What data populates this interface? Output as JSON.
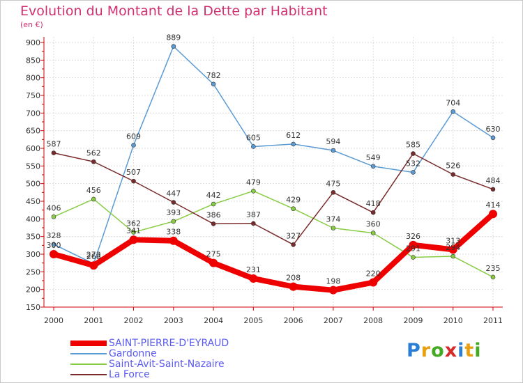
{
  "chart_data": {
    "type": "line",
    "title": "Evolution du Montant de la Dette par Habitant",
    "subtitle": "(en €)",
    "x": [
      "2000",
      "2001",
      "2002",
      "2003",
      "2004",
      "2005",
      "2006",
      "2007",
      "2008",
      "2009",
      "2010",
      "2011"
    ],
    "ylim": [
      150,
      900
    ],
    "yticks": [
      150,
      200,
      250,
      300,
      350,
      400,
      450,
      500,
      550,
      600,
      650,
      700,
      750,
      800,
      850,
      900
    ],
    "grid": true,
    "legend_position": "bottom-left",
    "series": [
      {
        "name": "SAINT-PIERRE-D'EYRAUD",
        "color": "#ee0000",
        "values": [
          300,
          268,
          341,
          338,
          275,
          231,
          208,
          198,
          220,
          326,
          313,
          414
        ]
      },
      {
        "name": "Gardonne",
        "color": "#5a9bd4",
        "values": [
          328,
          273,
          609,
          889,
          782,
          605,
          612,
          594,
          549,
          532,
          704,
          630
        ]
      },
      {
        "name": "Saint-Avit-Saint-Nazaire",
        "color": "#88cc44",
        "values": [
          406,
          456,
          362,
          393,
          442,
          479,
          429,
          374,
          360,
          291,
          294,
          235
        ]
      },
      {
        "name": "La Force",
        "color": "#7a2a2a",
        "values": [
          587,
          562,
          507,
          447,
          386,
          387,
          327,
          475,
          418,
          585,
          526,
          484
        ]
      }
    ]
  },
  "logo": {
    "letters": [
      "P",
      "r",
      "o",
      "x",
      "i",
      "t",
      "i"
    ],
    "colors": [
      "#2a7fd4",
      "#e8a010",
      "#44aa22",
      "#d82828",
      "#2a7fd4",
      "#e8a010",
      "#44aa22"
    ]
  }
}
